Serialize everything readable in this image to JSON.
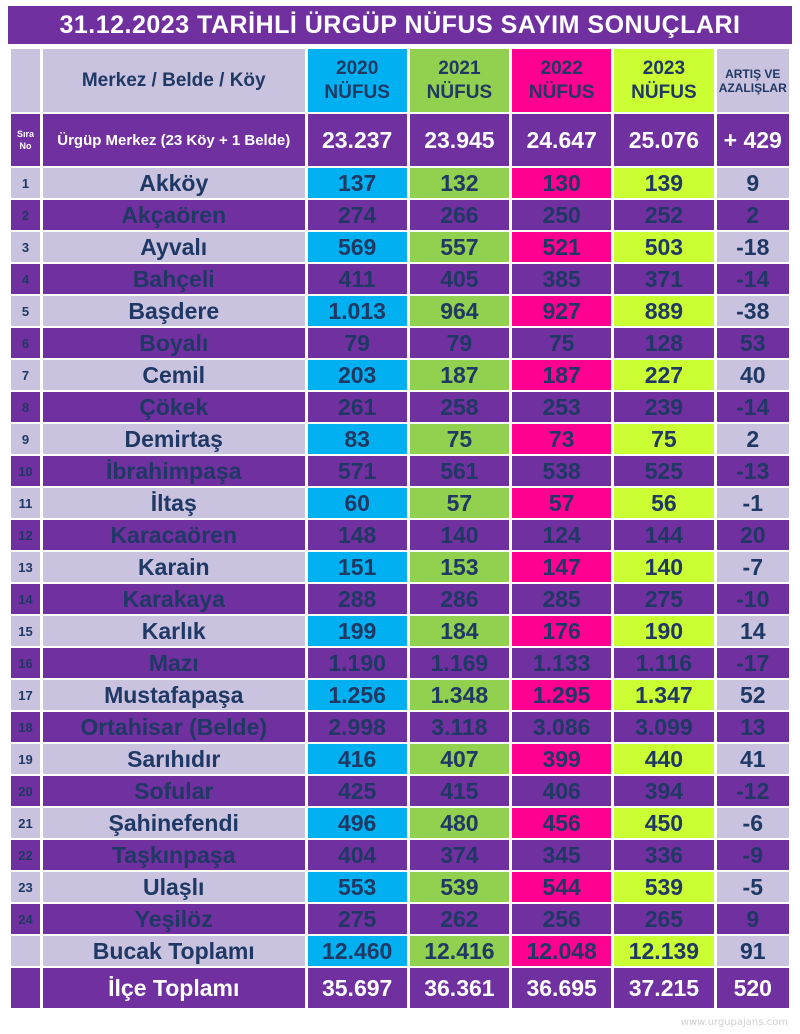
{
  "title": "31.12.2023  TARİHLİ  ÜRGÜP NÜFUS  SAYIM  SONUÇLARI",
  "header": {
    "name_col": "Merkez / Belde / Köy",
    "years": [
      "2020 NÜFUS",
      "2021 NÜFUS",
      "2022 NÜFUS",
      "2023 NÜFUS"
    ],
    "change_col": "ARTIŞ VE AZALIŞLAR"
  },
  "center": {
    "sira_label": "Sıra No",
    "name": "Ürgüp  Merkez (23 Köy + 1 Belde)",
    "values": [
      "23.237",
      "23.945",
      "24.647",
      "25.076"
    ],
    "change": "+ 429"
  },
  "rows": [
    {
      "no": "1",
      "name": "Akköy",
      "values": [
        "137",
        "132",
        "130",
        "139"
      ],
      "change": "9"
    },
    {
      "no": "2",
      "name": "Akçaören",
      "values": [
        "274",
        "266",
        "250",
        "252"
      ],
      "change": "2"
    },
    {
      "no": "3",
      "name": "Ayvalı",
      "values": [
        "569",
        "557",
        "521",
        "503"
      ],
      "change": "-18"
    },
    {
      "no": "4",
      "name": "Bahçeli",
      "values": [
        "411",
        "405",
        "385",
        "371"
      ],
      "change": "-14"
    },
    {
      "no": "5",
      "name": "Başdere",
      "values": [
        "1.013",
        "964",
        "927",
        "889"
      ],
      "change": "-38"
    },
    {
      "no": "6",
      "name": "Boyalı",
      "values": [
        "79",
        "79",
        "75",
        "128"
      ],
      "change": "53"
    },
    {
      "no": "7",
      "name": "Cemil",
      "values": [
        "203",
        "187",
        "187",
        "227"
      ],
      "change": "40"
    },
    {
      "no": "8",
      "name": "Çökek",
      "values": [
        "261",
        "258",
        "253",
        "239"
      ],
      "change": "-14"
    },
    {
      "no": "9",
      "name": "Demirtaş",
      "values": [
        "83",
        "75",
        "73",
        "75"
      ],
      "change": "2"
    },
    {
      "no": "10",
      "name": "İbrahimpaşa",
      "values": [
        "571",
        "561",
        "538",
        "525"
      ],
      "change": "-13"
    },
    {
      "no": "11",
      "name": "İltaş",
      "values": [
        "60",
        "57",
        "57",
        "56"
      ],
      "change": "-1"
    },
    {
      "no": "12",
      "name": "Karacaören",
      "values": [
        "148",
        "140",
        "124",
        "144"
      ],
      "change": "20"
    },
    {
      "no": "13",
      "name": "Karain",
      "values": [
        "151",
        "153",
        "147",
        "140"
      ],
      "change": "-7"
    },
    {
      "no": "14",
      "name": "Karakaya",
      "values": [
        "288",
        "286",
        "285",
        "275"
      ],
      "change": "-10"
    },
    {
      "no": "15",
      "name": "Karlık",
      "values": [
        "199",
        "184",
        "176",
        "190"
      ],
      "change": "14"
    },
    {
      "no": "16",
      "name": "Mazı",
      "values": [
        "1.190",
        "1.169",
        "1.133",
        "1.116"
      ],
      "change": "-17"
    },
    {
      "no": "17",
      "name": "Mustafapaşa",
      "values": [
        "1.256",
        "1.348",
        "1.295",
        "1.347"
      ],
      "change": "52"
    },
    {
      "no": "18",
      "name": "Ortahisar (Belde)",
      "values": [
        "2.998",
        "3.118",
        "3.086",
        "3.099"
      ],
      "change": "13"
    },
    {
      "no": "19",
      "name": "Sarıhıdır",
      "values": [
        "416",
        "407",
        "399",
        "440"
      ],
      "change": "41"
    },
    {
      "no": "20",
      "name": "Sofular",
      "values": [
        "425",
        "415",
        "406",
        "394"
      ],
      "change": "-12"
    },
    {
      "no": "21",
      "name": "Şahinefendi",
      "values": [
        "496",
        "480",
        "456",
        "450"
      ],
      "change": "-6"
    },
    {
      "no": "22",
      "name": "Taşkınpaşa",
      "values": [
        "404",
        "374",
        "345",
        "336"
      ],
      "change": "-9"
    },
    {
      "no": "23",
      "name": "Ulaşlı",
      "values": [
        "553",
        "539",
        "544",
        "539"
      ],
      "change": "-5"
    },
    {
      "no": "24",
      "name": "Yeşilöz",
      "values": [
        "275",
        "262",
        "256",
        "265"
      ],
      "change": "9"
    }
  ],
  "bucak_total": {
    "name": "Bucak Toplamı",
    "values": [
      "12.460",
      "12.416",
      "12.048",
      "12.139"
    ],
    "change": "91"
  },
  "ilce_total": {
    "name": "İlçe Toplamı",
    "values": [
      "35.697",
      "36.361",
      "36.695",
      "37.215"
    ],
    "change": "520"
  },
  "watermark": "www.urgupajans.com",
  "colors": {
    "purple": "#7030a0",
    "lavender": "#c9c3e0",
    "col2020": "#00b0f0",
    "col2021": "#92d050",
    "col2022": "#ff0090",
    "col2023": "#ccff33",
    "text_dark": "#1f3864"
  }
}
